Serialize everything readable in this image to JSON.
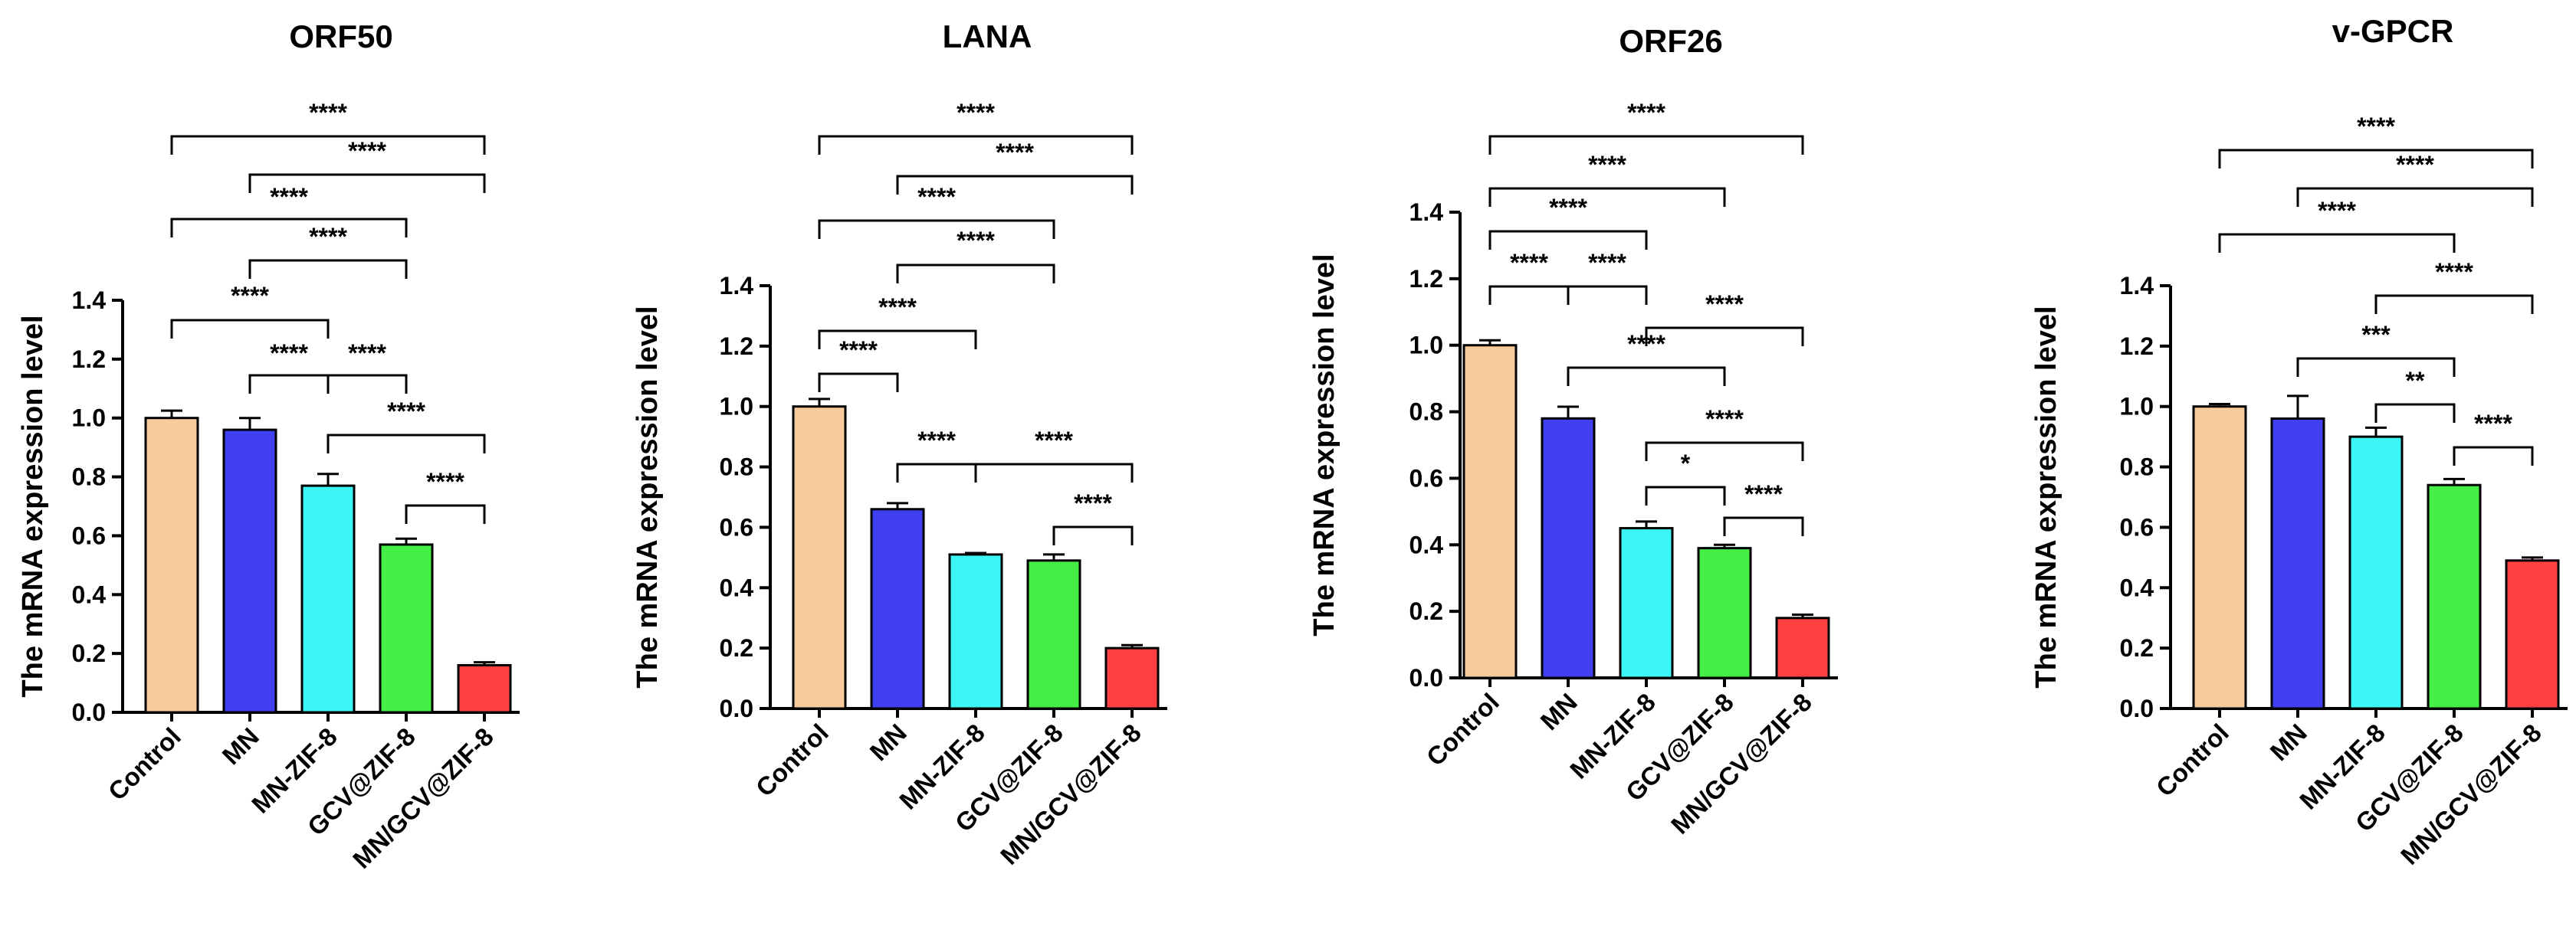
{
  "chart_data": [
    {
      "type": "bar",
      "title": "ORF50",
      "ylabel": "The mRNA expression level",
      "ylim": [
        0,
        1.4
      ],
      "yticks": [
        "0.0",
        "0.2",
        "0.4",
        "0.6",
        "0.8",
        "1.0",
        "1.2",
        "1.4"
      ],
      "categories": [
        "Control",
        "MN",
        "MN-ZIF-8",
        "GCV@ZIF-8",
        "MN/GCV@ZIF-8"
      ],
      "colors": [
        "#f9cb9c",
        "#4040f0",
        "#3ef5f5",
        "#45ee45",
        "#ff4040"
      ],
      "values": [
        1.0,
        0.96,
        0.77,
        0.57,
        0.16
      ],
      "errors": [
        0.025,
        0.04,
        0.04,
        0.02,
        0.01
      ],
      "significance": [
        {
          "from": 0,
          "to": 4,
          "label": "****"
        },
        {
          "from": 1,
          "to": 4,
          "label": "****"
        },
        {
          "from": 0,
          "to": 3,
          "label": "****"
        },
        {
          "from": 1,
          "to": 3,
          "label": "****"
        },
        {
          "from": 0,
          "to": 2,
          "label": "****"
        },
        {
          "from": 1,
          "to": 2,
          "label": "****"
        },
        {
          "from": 2,
          "to": 3,
          "label": "****"
        },
        {
          "from": 2,
          "to": 4,
          "label": "****"
        },
        {
          "from": 3,
          "to": 4,
          "label": "****"
        }
      ]
    },
    {
      "type": "bar",
      "title": "LANA",
      "ylabel": "The mRNA expression level",
      "ylim": [
        0,
        1.4
      ],
      "yticks": [
        "0.0",
        "0.2",
        "0.4",
        "0.6",
        "0.8",
        "1.0",
        "1.2",
        "1.4"
      ],
      "categories": [
        "Control",
        "MN",
        "MN-ZIF-8",
        "GCV@ZIF-8",
        "MN/GCV@ZIF-8"
      ],
      "colors": [
        "#f9cb9c",
        "#4040f0",
        "#3ef5f5",
        "#45ee45",
        "#ff4040"
      ],
      "values": [
        1.0,
        0.66,
        0.51,
        0.49,
        0.2
      ],
      "errors": [
        0.025,
        0.02,
        0.005,
        0.02,
        0.01
      ],
      "significance": [
        {
          "from": 0,
          "to": 4,
          "label": "****"
        },
        {
          "from": 1,
          "to": 4,
          "label": "****"
        },
        {
          "from": 0,
          "to": 3,
          "label": "****"
        },
        {
          "from": 1,
          "to": 3,
          "label": "****"
        },
        {
          "from": 0,
          "to": 2,
          "label": "****"
        },
        {
          "from": 0,
          "to": 1,
          "label": "****"
        },
        {
          "from": 1,
          "to": 2,
          "label": "****"
        },
        {
          "from": 2,
          "to": 4,
          "label": "****"
        },
        {
          "from": 3,
          "to": 4,
          "label": "****"
        }
      ]
    },
    {
      "type": "bar",
      "title": "ORF26",
      "ylabel": "The mRNA expression level",
      "ylim": [
        0,
        1.4
      ],
      "yticks": [
        "0.0",
        "0.2",
        "0.4",
        "0.6",
        "0.8",
        "1.0",
        "1.2",
        "1.4"
      ],
      "categories": [
        "Control",
        "MN",
        "MN-ZIF-8",
        "GCV@ZIF-8",
        "MN/GCV@ZIF-8"
      ],
      "colors": [
        "#f9cb9c",
        "#4040f0",
        "#3ef5f5",
        "#45ee45",
        "#ff4040"
      ],
      "values": [
        1.0,
        0.78,
        0.45,
        0.39,
        0.18
      ],
      "errors": [
        0.015,
        0.035,
        0.02,
        0.01,
        0.01
      ],
      "significance": [
        {
          "from": 0,
          "to": 4,
          "label": "****"
        },
        {
          "from": 0,
          "to": 3,
          "label": "****"
        },
        {
          "from": 0,
          "to": 2,
          "label": "****"
        },
        {
          "from": 0,
          "to": 1,
          "label": "****"
        },
        {
          "from": 1,
          "to": 2,
          "label": "****"
        },
        {
          "from": 2,
          "to": 4,
          "label": "****"
        },
        {
          "from": 1,
          "to": 3,
          "label": "****"
        },
        {
          "from": 2,
          "to": 4,
          "label": "****"
        },
        {
          "from": 2,
          "to": 3,
          "label": "*"
        },
        {
          "from": 3,
          "to": 4,
          "label": "****"
        }
      ]
    },
    {
      "type": "bar",
      "title": "v-GPCR",
      "ylabel": "The mRNA expression level",
      "ylim": [
        0,
        1.4
      ],
      "yticks": [
        "0.0",
        "0.2",
        "0.4",
        "0.6",
        "0.8",
        "1.0",
        "1.2",
        "1.4"
      ],
      "categories": [
        "Control",
        "MN",
        "MN-ZIF-8",
        "GCV@ZIF-8",
        "MN/GCV@ZIF-8"
      ],
      "colors": [
        "#f9cb9c",
        "#4040f0",
        "#3ef5f5",
        "#45ee45",
        "#ff4040"
      ],
      "values": [
        1.0,
        0.96,
        0.9,
        0.74,
        0.49
      ],
      "errors": [
        0.008,
        0.075,
        0.03,
        0.02,
        0.01
      ],
      "significance": [
        {
          "from": 0,
          "to": 4,
          "label": "****"
        },
        {
          "from": 1,
          "to": 4,
          "label": "****"
        },
        {
          "from": 0,
          "to": 3,
          "label": "****"
        },
        {
          "from": 2,
          "to": 4,
          "label": "****"
        },
        {
          "from": 1,
          "to": 3,
          "label": "***"
        },
        {
          "from": 2,
          "to": 3,
          "label": "**"
        },
        {
          "from": 3,
          "to": 4,
          "label": "****"
        }
      ]
    }
  ]
}
